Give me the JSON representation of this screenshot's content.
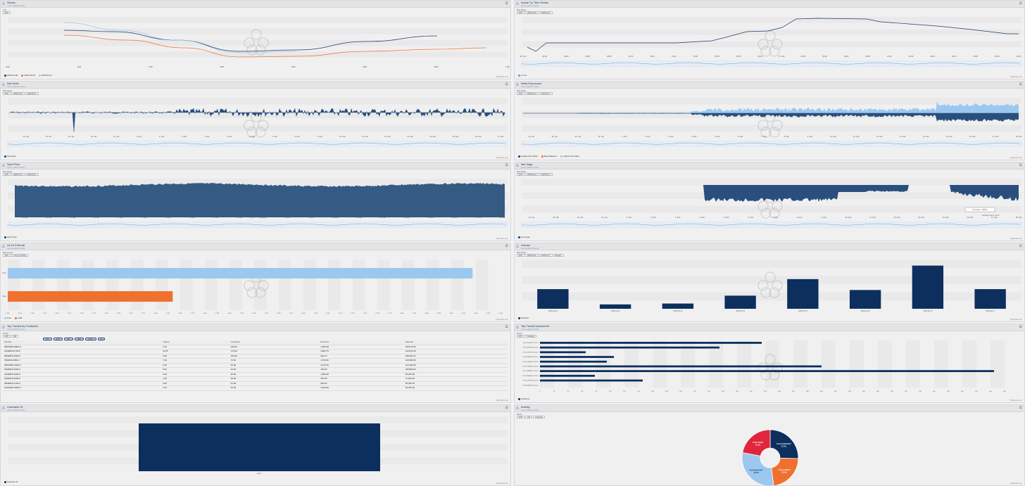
{
  "panels": {
    "p1": {
      "title": "Skews",
      "sub": "Last updated today"
    },
    "p2": {
      "title": "Actual Tp Time Series",
      "sub": "Last updated today"
    },
    "p3": {
      "title": "Net Delta",
      "sub": "Last updated today"
    },
    "p4": {
      "title": "Delta Exposures",
      "sub": "Last updated today"
    },
    "p5": {
      "title": "Spot Price",
      "sub": "Last updated today"
    },
    "p6": {
      "title": "Net Vega",
      "sub": "Last updated today"
    },
    "p7": {
      "title": "24-Hr Put/Call",
      "sub": "Last updated today"
    },
    "p8": {
      "title": "Volume",
      "sub": "Last updated today"
    },
    "p9": {
      "title": "Top Traded by Contracts",
      "sub": "Last updated today"
    },
    "p10": {
      "title": "Top Traded Instrument",
      "sub": "Last updated today"
    },
    "p11": {
      "title": "Contracts OI",
      "sub": "Last updated today"
    },
    "p12": {
      "title": "Activity",
      "sub": "Last updated today"
    }
  },
  "controls": {
    "p1": {
      "label": "Coin",
      "values": [
        "ETH"
      ]
    },
    "p2": {
      "label": "Date Range",
      "values": [
        "ETH",
        "2025-01-16",
        "2025-02-17"
      ]
    },
    "p3": {
      "label": "Date Range",
      "values": [
        "ETH",
        "2025-01-14",
        "2025-02-17"
      ]
    },
    "p4": {
      "label": "Date Range",
      "values": [
        "ETH",
        "2025-01-14",
        "2025-02-17"
      ]
    },
    "p5": {
      "label": "Date Range",
      "values": [
        "ETH",
        "2025-01-14",
        "2025-02-17"
      ]
    },
    "p6": {
      "label": "Date Range",
      "values": [
        "ETH",
        "2025-01-14",
        "2025-02-17"
      ]
    },
    "p7": {
      "label": "Data Interval",
      "values": [
        "ETH",
        "Long (3 months)"
      ]
    },
    "p8": {
      "label": "Date Range",
      "values": [
        "ETH",
        "2025-02-10",
        "2025-02-17",
        "Buckets"
      ]
    },
    "p9": {
      "label": "Period",
      "values": [
        "ETH",
        "24h"
      ]
    },
    "p10": {
      "label": "Period",
      "values": [
        "ETH",
        "Positions"
      ]
    },
    "p12": {
      "label": "Period",
      "values": [
        "ETH",
        "24h",
        "Contracts"
      ]
    }
  },
  "credit": "Highcharts.com",
  "chart_data": [
    {
      "type": "line",
      "id": "skews",
      "xticks": [
        "1000",
        "1100",
        "1200",
        "1300",
        "1400",
        "1500",
        "1600",
        "1700"
      ],
      "series": [
        {
          "name": "2025-02-28",
          "color": "#1c3c66"
        },
        {
          "name": "2025-03-28",
          "color": "#f07030"
        },
        {
          "name": "2025-06-27",
          "color": "#9cc8f0"
        }
      ]
    },
    {
      "type": "line",
      "id": "tp",
      "xticks": [
        "16. Feb",
        "02:00",
        "04:00",
        "06:00",
        "08:00",
        "10:00",
        "12:00",
        "14:00",
        "16:00",
        "18:00",
        "20:00",
        "22:00",
        "17. Feb",
        "02:00",
        "04:00",
        "06:00",
        "08:00",
        "10:00",
        "12:00",
        "14:00",
        "16:00",
        "18:00",
        "20:00",
        "22:00"
      ],
      "legend": [
        "1 hour"
      ]
    },
    {
      "type": "area",
      "id": "netdelta",
      "xticks": [
        "15. Jan",
        "20. Jan",
        "25. Jan",
        "30. Jan",
        "31. Jan",
        "1. Feb",
        "2. Feb",
        "3. Feb",
        "4. Feb",
        "5. Feb",
        "6. Feb",
        "7. Feb",
        "8. Feb",
        "9. Feb",
        "10. Feb",
        "11. Feb",
        "12. Feb",
        "13. Feb",
        "14. Feb",
        "15. Feb",
        "16. Feb",
        "17. Feb"
      ],
      "legend": [
        "Net Delta"
      ]
    },
    {
      "type": "area",
      "id": "deltaexp",
      "xticks": [
        "20. Jan",
        "25. Jan",
        "30. Jan",
        "31. Jan",
        "1. Feb",
        "2. Feb",
        "3. Feb",
        "4. Feb",
        "5. Feb",
        "6. Feb",
        "7. Feb",
        "8. Feb",
        "9. Feb",
        "10. Feb",
        "11. Feb",
        "12. Feb",
        "13. Feb",
        "14. Feb",
        "15. Feb",
        "16. Feb",
        "17. Feb",
        "18. Feb"
      ],
      "legend": [
        "Hedged Net Delta",
        "Base Balance",
        "Option Net Delta"
      ]
    },
    {
      "type": "area",
      "id": "spot",
      "xticks": [
        "15. Jan",
        "20. Jan",
        "25. Jan",
        "30. Jan",
        "1. Feb",
        "2. Feb",
        "3. Feb",
        "4. Feb",
        "5. Feb",
        "6. Feb",
        "7. Feb",
        "8. Feb",
        "9. Feb",
        "10. Feb",
        "11. Feb",
        "12. Feb",
        "14. Feb",
        "15. Feb",
        "16. Feb",
        "17. Feb",
        "18. Feb"
      ],
      "legend": [
        "Spot Price"
      ]
    },
    {
      "type": "area",
      "id": "netvega",
      "xticks": [
        "20. Jan",
        "25. Jan",
        "30. Jan",
        "31. Jan",
        "1. Feb",
        "2. Feb",
        "3. Feb",
        "4. Feb",
        "5. Feb",
        "6. Feb",
        "7. Feb",
        "8. Feb",
        "9. Feb",
        "10. Feb",
        "11. Feb",
        "12. Feb",
        "14. Feb",
        "15. Feb",
        "16. Feb",
        "17. Feb",
        "18. Feb"
      ],
      "legend": [
        "Net Vega"
      ],
      "tooltip": "Net Vega: -708.52",
      "tooltip_date": "Thursday, Feb 13, 11:00"
    },
    {
      "type": "bar",
      "id": "putcall",
      "categories": [
        "Puts",
        "Calls"
      ],
      "values": [
        0.93,
        0.33
      ],
      "legend": [
        "Puts",
        "Calls"
      ]
    },
    {
      "type": "bar",
      "id": "volume",
      "categories": [
        "2025-02-10",
        "2025-02-11",
        "2025-02-12",
        "2025-02-13",
        "2025-02-14",
        "2025-02-15",
        "2025-02-16",
        "2025-02-17"
      ],
      "values": [
        45,
        10,
        12,
        30,
        68,
        43,
        99,
        45
      ],
      "legend": [
        "Notional"
      ]
    },
    {
      "type": "table",
      "id": "toptraded",
      "filters": [
        "BTC",
        "ETH",
        "SOL",
        "XRP",
        "Others",
        "All"
      ],
      "headers": [
        "Symbol",
        "Trades",
        "Contracts",
        "Premium",
        "Notional"
      ],
      "rows": [
        [
          "28MAR25-2800-C",
          "7.00",
          "135.00",
          "1,656.08",
          "318,279.30"
        ],
        [
          "14FEB25-2700-P",
          "22.00",
          "170.00",
          "3,800.79",
          "134,541.94"
        ],
        [
          "28FEB25-2500-P",
          "3.00",
          "150.00",
          "940.10",
          "198,280.71"
        ],
        [
          "7MAR25-2800-C",
          "7.00",
          "70.00",
          "1,576.50",
          "118,480.80"
        ],
        [
          "28MAR25-3000-C",
          "6.00",
          "60.00",
          "2,475.00",
          "113,339.50"
        ],
        [
          "18FEB25-2600-P",
          "5.00",
          "42.00",
          "150.00",
          "108,880.60"
        ],
        [
          "21FEB25-2900-C",
          "3.00",
          "35.00",
          "1,890.06",
          "84,236.90"
        ],
        [
          "16FEB25-2650-P",
          "1.00",
          "30.00",
          "257.55",
          "71,020.00"
        ],
        [
          "28FEB25-2700-C",
          "3.00",
          "61.00",
          "345.00",
          "65,338.46"
        ],
        [
          "14MAR25-2900-C",
          "2.00",
          "40.00",
          "4,610.00",
          "60,345.00"
        ]
      ]
    },
    {
      "type": "bar",
      "id": "topinstrument",
      "categories": [
        "ETH-28FEB25-2700-C",
        "ETH-28FEB25-2800-C",
        "ETH-14FEB25-2500-P",
        "ETH-28MAR25-3000-C",
        "ETH-07MAR25-1800-P",
        "ETH-07MAR25-2500-P",
        "ETH-28MAR25-1600-P",
        "ETH-28MAR25-1200-P",
        "ETH-14FEB25-2000-P",
        "ETH-28MAR25-3500-C"
      ],
      "values": [
        315,
        255,
        65,
        105,
        95,
        400,
        645,
        78,
        146,
        0
      ],
      "legend": [
        "Positions"
      ]
    },
    {
      "type": "bar",
      "id": "contractsoi",
      "categories": [
        "ETH"
      ],
      "values": [
        1
      ],
      "legend": [
        "Notional OI"
      ]
    },
    {
      "type": "pie",
      "id": "activity",
      "slices": [
        {
          "name": "CALLS BOUGHT",
          "value": 25.4,
          "color": "#0d2f5e"
        },
        {
          "name": "CALLS SOLD",
          "value": 22.6,
          "color": "#f07030"
        },
        {
          "name": "PUTS BOUGHT",
          "value": 30.0,
          "color": "#9cc8f0"
        },
        {
          "name": "PUTS SOLD",
          "value": 22.0,
          "color": "#e0263c"
        }
      ],
      "labels": [
        "CALLS BOUGHT\n25.4%",
        "CALLS SOLD\n22.6%",
        "PUTS BOUGHT\n30.0%",
        "PUTS SOLD\n22.0%"
      ]
    }
  ]
}
